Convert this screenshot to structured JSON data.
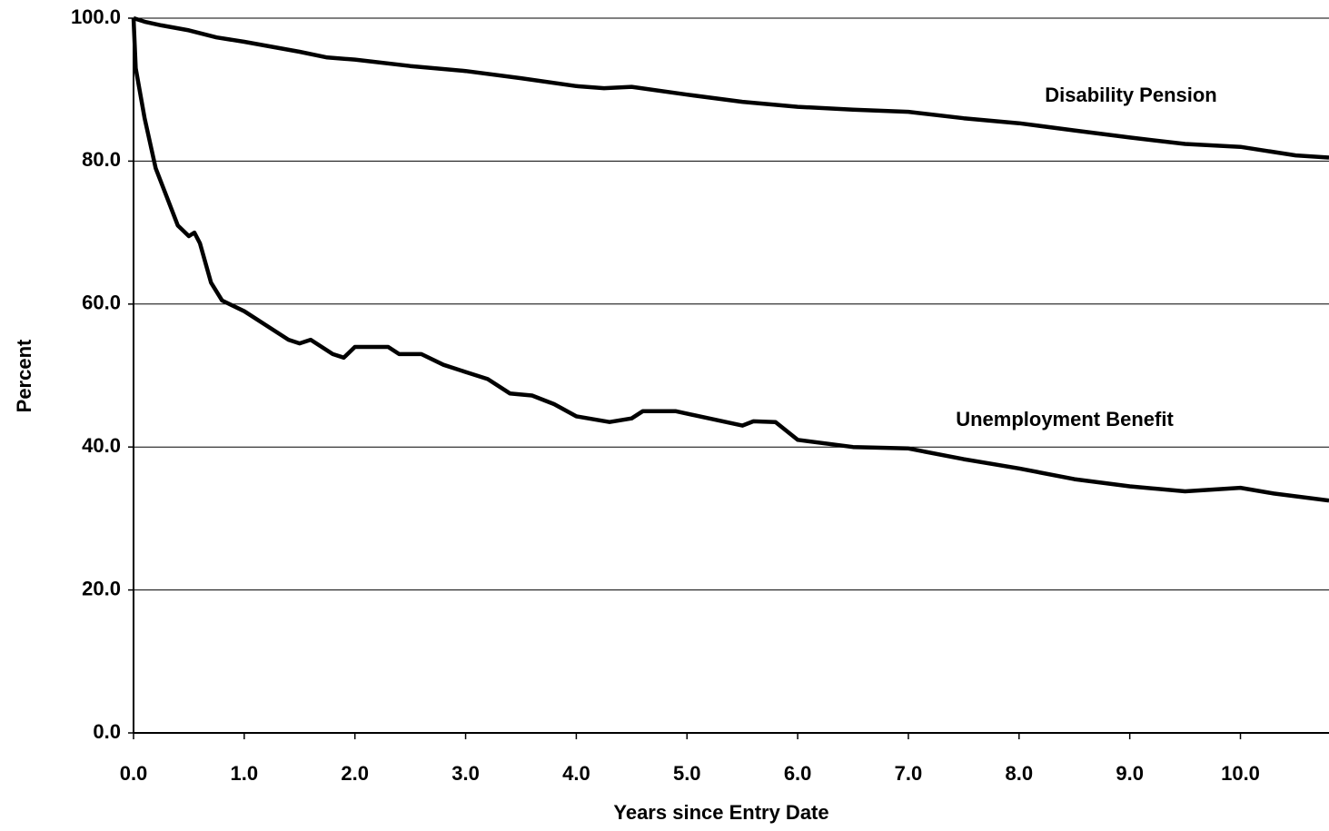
{
  "chart_data": {
    "type": "line",
    "x_label": "Years since Entry Date",
    "y_label": "Percent",
    "xlim": [
      0,
      10.8
    ],
    "ylim": [
      0,
      100
    ],
    "xticks": [
      {
        "value": 0,
        "label": "0.0"
      },
      {
        "value": 1,
        "label": "1.0"
      },
      {
        "value": 2,
        "label": "2.0"
      },
      {
        "value": 3,
        "label": "3.0"
      },
      {
        "value": 4,
        "label": "4.0"
      },
      {
        "value": 5,
        "label": "5.0"
      },
      {
        "value": 6,
        "label": "6.0"
      },
      {
        "value": 7,
        "label": "7.0"
      },
      {
        "value": 8,
        "label": "8.0"
      },
      {
        "value": 9,
        "label": "9.0"
      },
      {
        "value": 10,
        "label": "10.0"
      }
    ],
    "yticks": [
      {
        "value": 0,
        "label": "0.0"
      },
      {
        "value": 20,
        "label": "20.0"
      },
      {
        "value": 40,
        "label": "40.0"
      },
      {
        "value": 60,
        "label": "60.0"
      },
      {
        "value": 80,
        "label": "80.0"
      },
      {
        "value": 100,
        "label": "100.0"
      }
    ],
    "grid": true,
    "series": [
      {
        "name": "Disability Pension",
        "color": "#000000",
        "x": [
          0,
          0.1,
          0.25,
          0.5,
          0.75,
          1.0,
          1.25,
          1.5,
          1.75,
          2.0,
          2.5,
          3.0,
          3.5,
          4.0,
          4.25,
          4.5,
          5.0,
          5.5,
          6.0,
          6.5,
          7.0,
          7.5,
          8.0,
          8.5,
          9.0,
          9.5,
          10.0,
          10.5,
          10.8
        ],
        "values": [
          100,
          99.5,
          99,
          98.3,
          97.3,
          96.7,
          96,
          95.3,
          94.5,
          94.2,
          93.3,
          92.6,
          91.6,
          90.5,
          90.2,
          90.4,
          89.3,
          88.3,
          87.6,
          87.2,
          86.9,
          86,
          85.3,
          84.3,
          83.3,
          82.4,
          82,
          80.8,
          80.5
        ]
      },
      {
        "name": "Unemployment Benefit",
        "color": "#000000",
        "x": [
          0,
          0.02,
          0.1,
          0.2,
          0.3,
          0.4,
          0.5,
          0.55,
          0.6,
          0.7,
          0.8,
          1.0,
          1.2,
          1.4,
          1.5,
          1.6,
          1.8,
          1.9,
          2.0,
          2.3,
          2.4,
          2.6,
          2.8,
          3.0,
          3.2,
          3.4,
          3.6,
          3.8,
          4.0,
          4.3,
          4.5,
          4.6,
          4.9,
          5.2,
          5.5,
          5.6,
          5.8,
          6.0,
          6.5,
          7.0,
          7.5,
          8.0,
          8.5,
          9.0,
          9.5,
          10.0,
          10.3,
          10.8
        ],
        "values": [
          100,
          93,
          86,
          79,
          75,
          71,
          69.5,
          70,
          68.5,
          63,
          60.5,
          59,
          57,
          55,
          54.5,
          55,
          53,
          52.5,
          54,
          54,
          53,
          53,
          51.5,
          50.5,
          49.5,
          47.5,
          47.2,
          46,
          44.3,
          43.5,
          44,
          45,
          45,
          44,
          43,
          43.6,
          43.5,
          41,
          40,
          39.8,
          38.3,
          37,
          35.5,
          34.5,
          33.8,
          34.3,
          33.5,
          32.5
        ]
      }
    ]
  }
}
